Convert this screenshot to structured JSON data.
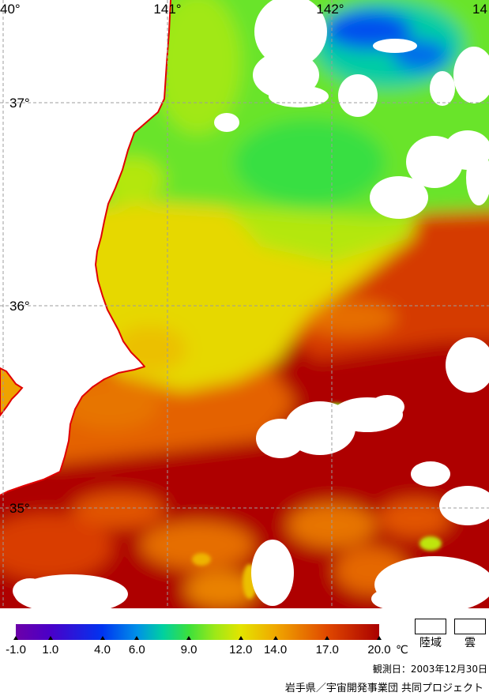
{
  "map": {
    "longitude_labels": [
      "40°",
      "141°",
      "142°",
      "14"
    ],
    "latitude_labels": [
      "37°",
      "36°",
      "35°"
    ],
    "coastline_color": "#e00000",
    "grid_color": "#9c9c9c",
    "sst_field_c": {
      "base": 19.8,
      "patches": [
        16.2,
        17.6,
        15.8,
        15.8,
        15.6,
        16.6,
        16.0,
        15.2,
        16.6,
        15.6,
        17.4,
        12.4,
        13.2,
        11.0,
        9.7,
        8.9,
        10.6,
        11.0,
        7.4,
        4.6,
        5.2
      ],
      "spots": [
        10.0,
        13.2,
        11.2,
        13.6
      ],
      "lake": 14.2
    }
  },
  "colorbar": {
    "min": -1.0,
    "max": 20.0,
    "unit": "℃",
    "ticks": [
      {
        "value": -1.0,
        "label": "-1.0"
      },
      {
        "value": 1.0,
        "label": "1.0"
      },
      {
        "value": 4.0,
        "label": "4.0"
      },
      {
        "value": 6.0,
        "label": "6.0"
      },
      {
        "value": 9.0,
        "label": "9.0"
      },
      {
        "value": 12.0,
        "label": "12.0"
      },
      {
        "value": 14.0,
        "label": "14.0"
      },
      {
        "value": 17.0,
        "label": "17.0"
      },
      {
        "value": 20.0,
        "label": "20.0"
      }
    ],
    "stops": [
      {
        "value": -1.0,
        "color": "#6c00a8"
      },
      {
        "value": 1.0,
        "color": "#4a00c8"
      },
      {
        "value": 4.0,
        "color": "#0034f0"
      },
      {
        "value": 6.0,
        "color": "#0090e8"
      },
      {
        "value": 7.5,
        "color": "#00d0a0"
      },
      {
        "value": 9.0,
        "color": "#3ce03c"
      },
      {
        "value": 10.5,
        "color": "#9ce818"
      },
      {
        "value": 12.0,
        "color": "#e4e400"
      },
      {
        "value": 14.0,
        "color": "#f0a800"
      },
      {
        "value": 17.0,
        "color": "#e04800"
      },
      {
        "value": 20.0,
        "color": "#aa0000"
      }
    ]
  },
  "legend": {
    "land_label": "陸域",
    "land_color": "#ffffff",
    "cloud_label": "雲",
    "cloud_color": "#ffffff"
  },
  "observation_date": "観測日：2003年12月30日",
  "credit": "岩手県／宇宙開発事業団 共同プロジェクト"
}
